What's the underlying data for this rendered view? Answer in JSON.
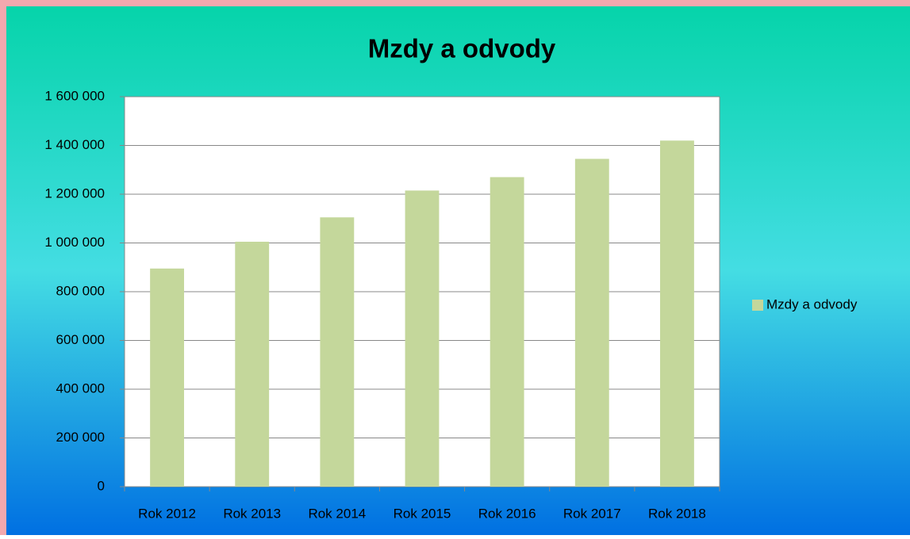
{
  "chart_data": {
    "type": "bar",
    "title": "Mzdy a odvody",
    "categories": [
      "Rok 2012",
      "Rok 2013",
      "Rok 2014",
      "Rok 2015",
      "Rok 2016",
      "Rok 2017",
      "Rok 2018"
    ],
    "series": [
      {
        "name": "Mzdy a odvody",
        "color": "#c4d79b",
        "values": [
          895000,
          1005000,
          1105000,
          1215000,
          1270000,
          1345000,
          1420000
        ]
      }
    ],
    "ylim": [
      0,
      1600000
    ],
    "yticks": [
      0,
      {
        "value": 200000,
        "label": "200 000"
      },
      {
        "value": 400000,
        "label": "400 000"
      },
      {
        "value": 600000,
        "label": "600 000"
      },
      {
        "value": 800000,
        "label": "800 000"
      },
      {
        "value": 1000000,
        "label": "1 000 000"
      },
      {
        "value": 1200000,
        "label": "1 200 000"
      },
      {
        "value": 1400000,
        "label": "1 400 000"
      },
      {
        "value": 1600000,
        "label": "1 600 000"
      }
    ],
    "grid": true,
    "legend": "right"
  }
}
